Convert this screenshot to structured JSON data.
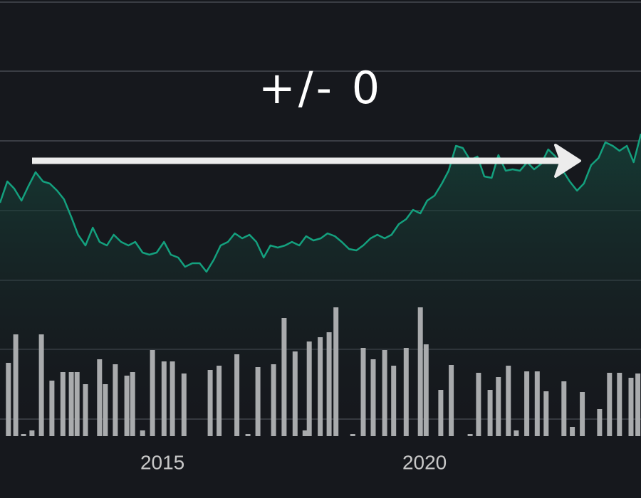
{
  "chart_data": [
    {
      "type": "line",
      "annotation": "+/- 0",
      "color": "#14a07e",
      "xlim": [
        2011.9,
        2024.13
      ],
      "ylim": [
        0,
        589
      ],
      "x": [
        2011.9,
        2012.04,
        2012.17,
        2012.31,
        2012.44,
        2012.58,
        2012.72,
        2012.85,
        2012.99,
        2013.12,
        2013.26,
        2013.39,
        2013.53,
        2013.67,
        2013.8,
        2013.94,
        2014.07,
        2014.21,
        2014.35,
        2014.48,
        2014.62,
        2014.75,
        2014.89,
        2015.03,
        2015.16,
        2015.3,
        2015.43,
        2015.57,
        2015.71,
        2015.84,
        2015.98,
        2016.11,
        2016.25,
        2016.38,
        2016.52,
        2016.66,
        2016.79,
        2016.93,
        2017.06,
        2017.2,
        2017.34,
        2017.47,
        2017.61,
        2017.74,
        2017.88,
        2018.02,
        2018.15,
        2018.29,
        2018.42,
        2018.56,
        2018.7,
        2018.83,
        2018.97,
        2019.1,
        2019.24,
        2019.37,
        2019.51,
        2019.65,
        2019.78,
        2019.92,
        2020.05,
        2020.19,
        2020.33,
        2020.46,
        2020.6,
        2020.73,
        2020.87,
        2021.01,
        2021.14,
        2021.28,
        2021.41,
        2021.55,
        2021.68,
        2021.82,
        2021.96,
        2022.09,
        2022.23,
        2022.36,
        2022.5,
        2022.64,
        2022.77,
        2022.91,
        2023.04,
        2023.18,
        2023.32,
        2023.45,
        2023.59,
        2023.72,
        2023.86,
        2023.99,
        2024.13
      ],
      "values": [
        304,
        334,
        324,
        307,
        327,
        347,
        334,
        331,
        321,
        309,
        284,
        259,
        244,
        269,
        249,
        244,
        259,
        249,
        244,
        249,
        234,
        231,
        234,
        249,
        231,
        227,
        214,
        219,
        219,
        207,
        224,
        244,
        249,
        261,
        254,
        259,
        249,
        227,
        244,
        241,
        244,
        249,
        244,
        257,
        251,
        254,
        261,
        257,
        249,
        239,
        237,
        244,
        254,
        259,
        254,
        259,
        274,
        281,
        294,
        289,
        307,
        314,
        331,
        349,
        384,
        381,
        364,
        369,
        341,
        339,
        371,
        349,
        351,
        349,
        361,
        351,
        359,
        379,
        369,
        349,
        334,
        321,
        331,
        357,
        367,
        389,
        384,
        377,
        384,
        361,
        401
      ]
    },
    {
      "type": "bar",
      "color": "#a9abad",
      "xlim": [
        2011.9,
        2024.13
      ],
      "ylim": [
        0,
        613
      ],
      "xticks": [
        2015,
        2020
      ],
      "x": [
        2012.06,
        2012.2,
        2012.35,
        2012.51,
        2012.69,
        2012.89,
        2013.1,
        2013.26,
        2013.37,
        2013.53,
        2013.8,
        2013.91,
        2014.1,
        2014.32,
        2014.43,
        2014.62,
        2014.81,
        2015.03,
        2015.19,
        2015.41,
        2015.91,
        2016.08,
        2016.42,
        2016.63,
        2016.82,
        2017.12,
        2017.32,
        2017.53,
        2017.72,
        2017.8,
        2018.01,
        2018.18,
        2018.31,
        2018.63,
        2018.83,
        2019.02,
        2019.24,
        2019.41,
        2019.65,
        2019.92,
        2020.03,
        2020.31,
        2020.51,
        2020.87,
        2021.03,
        2021.25,
        2021.41,
        2021.6,
        2021.75,
        2021.95,
        2022.15,
        2022.32,
        2022.66,
        2022.82,
        2023.01,
        2023.34,
        2023.53,
        2023.72,
        2023.94,
        2024.07
      ],
      "values": [
        103,
        143,
        3,
        8,
        143,
        78,
        90,
        90,
        90,
        73,
        108,
        73,
        101,
        85,
        90,
        8,
        121,
        105,
        105,
        88,
        93,
        99,
        115,
        3,
        97,
        101,
        166,
        119,
        8,
        133,
        139,
        146,
        181,
        3,
        124,
        108,
        121,
        99,
        124,
        181,
        129,
        65,
        100,
        3,
        89,
        65,
        83,
        99,
        8,
        91,
        91,
        63,
        77,
        13,
        62,
        38,
        89,
        89,
        82,
        88
      ]
    }
  ]
}
